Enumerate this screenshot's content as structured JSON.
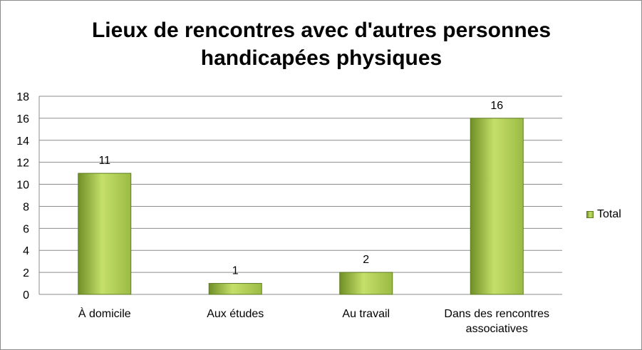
{
  "colors": {
    "bar_fill_light": "#c5e06a",
    "bar_fill_mid": "#9bbb44",
    "bar_fill_dark": "#6f8f26",
    "bar_edge": "#5e7e20",
    "gridline": "#8c8c8c"
  },
  "chart_data": {
    "type": "bar",
    "title": [
      "Lieux de rencontres avec d'autres personnes",
      "handicapées physiques"
    ],
    "xlabel": "",
    "ylabel": "",
    "categories": [
      [
        "À domicile"
      ],
      [
        "Aux études"
      ],
      [
        "Au travail"
      ],
      [
        "Dans des rencontres",
        "associatives"
      ]
    ],
    "series": [
      {
        "name": "Total",
        "values": [
          11,
          1,
          2,
          16
        ]
      }
    ],
    "ylim": [
      0,
      18
    ],
    "yticks": [
      "0",
      "2",
      "4",
      "6",
      "8",
      "10",
      "12",
      "14",
      "16",
      "18"
    ],
    "data_labels": [
      "11",
      "1",
      "2",
      "16"
    ],
    "grid": true,
    "legend_position": "right"
  }
}
